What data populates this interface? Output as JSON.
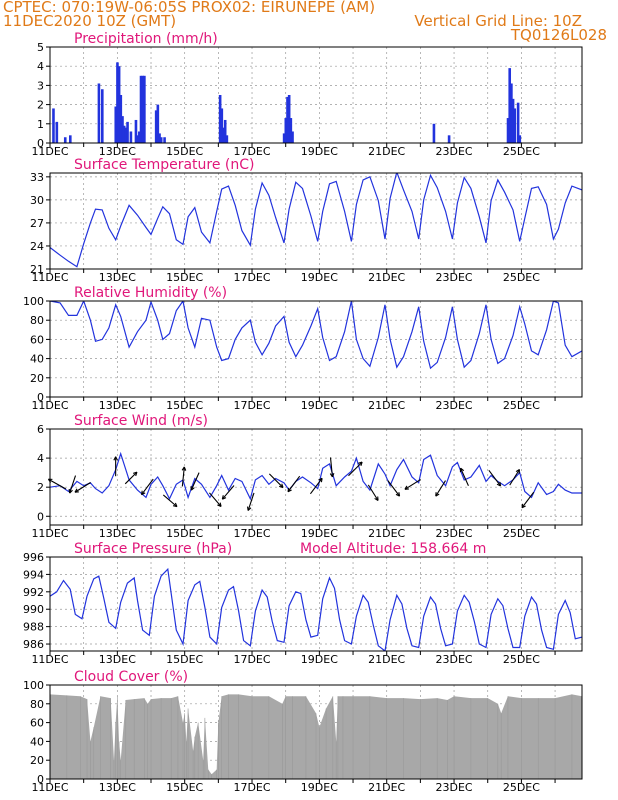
{
  "header": {
    "line1_left": "CPTEC:   070:19W-06:05S   PROX02: EIRUNEPE (AM)",
    "line2_left": "11DEC2020 10Z (GMT)",
    "line2_right": "Vertical Grid Line: 10Z",
    "line3_right": "TQ0126L028"
  },
  "colors": {
    "header": "#e07a18",
    "title": "#e0177a",
    "series": "#2233dd",
    "cloud": "#a8a8a8"
  },
  "x_axis": {
    "tick_labels": [
      "11DEC",
      "13DEC",
      "15DEC",
      "17DEC",
      "19DEC",
      "21DEC",
      "23DEC",
      "25DEC"
    ],
    "day_start": 11,
    "day_end": 26.8,
    "label_step_days": 2,
    "grid_days": [
      12,
      13,
      14,
      15,
      16,
      17,
      18,
      19,
      20,
      21,
      22,
      23,
      24,
      25,
      26
    ]
  },
  "chart_data": [
    {
      "id": "precip",
      "type": "bar",
      "title": "Precipitation (mm/h)",
      "ylim": [
        0,
        5
      ],
      "yticks": [
        "0",
        "1",
        "2",
        "3",
        "4",
        "5"
      ],
      "x_days": [
        11.1,
        11.2,
        11.45,
        11.6,
        12.45,
        12.55,
        12.95,
        13.0,
        13.05,
        13.1,
        13.15,
        13.2,
        13.25,
        13.3,
        13.4,
        13.55,
        13.6,
        13.65,
        13.7,
        13.75,
        13.8,
        14.15,
        14.2,
        14.25,
        14.3,
        14.4,
        16.05,
        16.1,
        16.15,
        16.2,
        16.25,
        17.95,
        18.0,
        18.05,
        18.1,
        18.15,
        18.2,
        22.4,
        22.85,
        24.6,
        24.65,
        24.7,
        24.75,
        24.8,
        24.9,
        24.95
      ],
      "values": [
        1.8,
        1.1,
        0.3,
        0.4,
        3.1,
        2.8,
        1.9,
        4.2,
        4.0,
        2.5,
        1.4,
        0.9,
        0.8,
        1.1,
        0.6,
        1.2,
        0.4,
        0.6,
        3.5,
        3.5,
        3.5,
        1.7,
        2.0,
        0.5,
        0.3,
        0.3,
        2.5,
        1.8,
        0.8,
        1.2,
        0.4,
        0.5,
        1.3,
        2.4,
        2.5,
        1.3,
        0.6,
        1.0,
        0.4,
        1.3,
        3.9,
        3.1,
        2.3,
        1.8,
        2.1,
        0.4
      ]
    },
    {
      "id": "temp",
      "type": "line",
      "title": "Surface Temperature (nC)",
      "ylim": [
        21,
        33.5
      ],
      "yticks": [
        "21",
        "24",
        "27",
        "30",
        "33"
      ],
      "ytick_values": [
        21,
        24,
        27,
        30,
        33
      ],
      "tmin": 24,
      "tmax": 30,
      "x_days": [
        11.0,
        11.3,
        11.55,
        11.8,
        12.0,
        12.2,
        12.35,
        12.55,
        12.75,
        12.95,
        13.1,
        13.35,
        13.6,
        13.85,
        14.0,
        14.2,
        14.35,
        14.55,
        14.75,
        14.95,
        15.1,
        15.3,
        15.5,
        15.75,
        15.95,
        16.1,
        16.3,
        16.5,
        16.7,
        16.95,
        17.1,
        17.3,
        17.5,
        17.7,
        17.95,
        18.1,
        18.3,
        18.5,
        18.75,
        18.95,
        19.1,
        19.3,
        19.5,
        19.75,
        19.95,
        20.1,
        20.3,
        20.5,
        20.75,
        20.95,
        21.1,
        21.3,
        21.5,
        21.75,
        21.95,
        22.1,
        22.3,
        22.5,
        22.75,
        22.95,
        23.1,
        23.3,
        23.5,
        23.75,
        23.95,
        24.1,
        24.3,
        24.5,
        24.75,
        24.95,
        25.1,
        25.3,
        25.5,
        25.75,
        25.95,
        26.1,
        26.3,
        26.5,
        26.8
      ],
      "values": [
        23.8,
        22.8,
        22.0,
        21.3,
        24.3,
        27.0,
        28.8,
        28.7,
        26.3,
        24.8,
        26.6,
        29.3,
        28.0,
        26.4,
        25.5,
        27.6,
        29.1,
        28.2,
        24.8,
        24.2,
        27.8,
        29.0,
        25.8,
        24.4,
        28.5,
        31.4,
        31.8,
        29.3,
        26.0,
        24.1,
        28.8,
        32.2,
        30.6,
        27.7,
        24.4,
        28.8,
        32.3,
        31.5,
        27.9,
        24.6,
        28.5,
        32.1,
        32.4,
        28.5,
        24.6,
        29.4,
        32.6,
        33.0,
        29.9,
        24.9,
        30.2,
        33.6,
        31.3,
        28.5,
        24.9,
        30.0,
        33.2,
        31.6,
        28.5,
        24.9,
        29.6,
        32.9,
        31.5,
        27.8,
        24.4,
        29.9,
        32.6,
        31.0,
        28.7,
        24.6,
        27.6,
        31.5,
        31.7,
        29.4,
        24.9,
        26.2,
        29.6,
        31.8,
        31.3
      ]
    },
    {
      "id": "rh",
      "type": "line",
      "title": "Relative Humidity (%)",
      "ylim": [
        0,
        100
      ],
      "yticks": [
        "0",
        "20",
        "40",
        "60",
        "80",
        "100"
      ],
      "ytick_values": [
        0,
        20,
        40,
        60,
        80,
        100
      ],
      "x_days": [
        11.0,
        11.3,
        11.55,
        11.8,
        12.0,
        12.2,
        12.35,
        12.55,
        12.75,
        12.95,
        13.1,
        13.35,
        13.6,
        13.85,
        14.0,
        14.2,
        14.35,
        14.55,
        14.75,
        14.95,
        15.1,
        15.3,
        15.5,
        15.75,
        15.95,
        16.1,
        16.3,
        16.5,
        16.7,
        16.95,
        17.1,
        17.3,
        17.5,
        17.7,
        17.95,
        18.1,
        18.3,
        18.5,
        18.75,
        18.95,
        19.1,
        19.3,
        19.5,
        19.75,
        19.95,
        20.1,
        20.3,
        20.5,
        20.75,
        20.95,
        21.1,
        21.3,
        21.5,
        21.75,
        21.95,
        22.1,
        22.3,
        22.5,
        22.75,
        22.95,
        23.1,
        23.3,
        23.5,
        23.75,
        23.95,
        24.1,
        24.3,
        24.5,
        24.75,
        24.95,
        25.1,
        25.3,
        25.5,
        25.75,
        25.95,
        26.1,
        26.3,
        26.5,
        26.8
      ],
      "values": [
        100,
        98,
        85,
        85,
        100,
        80,
        58,
        60,
        72,
        96,
        84,
        52,
        68,
        80,
        99,
        80,
        60,
        66,
        90,
        100,
        72,
        52,
        82,
        80,
        52,
        38,
        40,
        60,
        72,
        80,
        57,
        44,
        56,
        74,
        84,
        57,
        42,
        54,
        74,
        92,
        62,
        38,
        42,
        68,
        100,
        60,
        40,
        32,
        62,
        96,
        60,
        31,
        42,
        68,
        94,
        58,
        30,
        36,
        62,
        94,
        60,
        31,
        38,
        66,
        96,
        60,
        35,
        40,
        64,
        94,
        76,
        48,
        44,
        70,
        100,
        98,
        54,
        42,
        48
      ]
    },
    {
      "id": "wind",
      "type": "line",
      "title": "Surface Wind (m/s)",
      "ylim": [
        -0.6,
        6
      ],
      "yticks": [
        "0",
        "2",
        "4",
        "6"
      ],
      "ytick_values": [
        0,
        2,
        4,
        6
      ],
      "x_days": [
        11.0,
        11.3,
        11.55,
        11.8,
        12.0,
        12.2,
        12.35,
        12.55,
        12.75,
        12.95,
        13.1,
        13.35,
        13.6,
        13.85,
        14.0,
        14.2,
        14.35,
        14.55,
        14.75,
        14.95,
        15.1,
        15.3,
        15.5,
        15.75,
        15.95,
        16.1,
        16.3,
        16.5,
        16.7,
        16.95,
        17.1,
        17.3,
        17.5,
        17.7,
        17.95,
        18.1,
        18.3,
        18.5,
        18.75,
        18.95,
        19.1,
        19.3,
        19.5,
        19.75,
        19.95,
        20.1,
        20.3,
        20.5,
        20.75,
        20.95,
        21.1,
        21.3,
        21.5,
        21.75,
        21.95,
        22.1,
        22.3,
        22.5,
        22.75,
        22.95,
        23.1,
        23.3,
        23.5,
        23.75,
        23.95,
        24.1,
        24.3,
        24.5,
        24.75,
        24.95,
        25.1,
        25.3,
        25.5,
        25.75,
        25.95,
        26.1,
        26.3,
        26.5,
        26.8
      ],
      "values": [
        2.0,
        2.1,
        1.7,
        2.4,
        2.1,
        2.3,
        1.9,
        1.6,
        2.1,
        3.2,
        4.3,
        2.5,
        1.8,
        1.3,
        2.2,
        2.7,
        2.1,
        1.2,
        2.2,
        2.5,
        1.3,
        2.6,
        2.2,
        1.3,
        2.1,
        2.8,
        1.8,
        2.6,
        2.4,
        1.2,
        2.5,
        2.8,
        2.2,
        2.6,
        2.3,
        1.8,
        2.4,
        2.7,
        2.3,
        1.9,
        3.3,
        3.6,
        2.1,
        2.7,
        3.1,
        4.0,
        2.4,
        1.8,
        3.6,
        2.9,
        2.1,
        3.2,
        3.9,
        2.7,
        2.3,
        3.9,
        4.2,
        2.8,
        2.1,
        3.4,
        3.7,
        2.5,
        2.7,
        3.5,
        2.4,
        2.8,
        2.4,
        2.1,
        2.5,
        3.0,
        1.7,
        1.3,
        2.3,
        1.5,
        1.7,
        2.2,
        1.8,
        1.6,
        1.6
      ],
      "barbs": [
        {
          "day": 11.3,
          "u": -0.9,
          "v": 0.5
        },
        {
          "day": 11.7,
          "u": -0.3,
          "v": -0.9
        },
        {
          "day": 12.05,
          "u": -0.8,
          "v": -0.5
        },
        {
          "day": 12.95,
          "u": 0.0,
          "v": 1.0
        },
        {
          "day": 13.35,
          "u": 0.6,
          "v": 0.6
        },
        {
          "day": 13.95,
          "u": -0.6,
          "v": -0.8
        },
        {
          "day": 14.5,
          "u": 0.7,
          "v": -0.6
        },
        {
          "day": 14.95,
          "u": 0.1,
          "v": 1.0
        },
        {
          "day": 15.35,
          "u": -0.4,
          "v": -0.9
        },
        {
          "day": 15.85,
          "u": 0.6,
          "v": -0.7
        },
        {
          "day": 16.35,
          "u": -0.6,
          "v": -0.7
        },
        {
          "day": 17.0,
          "u": -0.3,
          "v": -0.9
        },
        {
          "day": 17.65,
          "u": 0.7,
          "v": -0.7
        },
        {
          "day": 18.3,
          "u": -0.6,
          "v": -0.8
        },
        {
          "day": 18.85,
          "u": 0.6,
          "v": 0.8
        },
        {
          "day": 19.35,
          "u": 0.1,
          "v": -1.0
        },
        {
          "day": 20.0,
          "u": 0.7,
          "v": 0.7
        },
        {
          "day": 20.55,
          "u": 0.5,
          "v": -0.8
        },
        {
          "day": 21.15,
          "u": 0.6,
          "v": -0.8
        },
        {
          "day": 21.85,
          "u": -0.8,
          "v": -0.5
        },
        {
          "day": 22.65,
          "u": -0.5,
          "v": -0.8
        },
        {
          "day": 23.35,
          "u": -0.4,
          "v": 0.9
        },
        {
          "day": 24.15,
          "u": 0.6,
          "v": -0.8
        },
        {
          "day": 24.75,
          "u": 0.5,
          "v": 0.8
        },
        {
          "day": 25.25,
          "u": -0.6,
          "v": -0.8
        }
      ]
    },
    {
      "id": "pres",
      "type": "line",
      "title": "Surface Pressure (hPa)",
      "annotation": "Model Altitude: 158.664 m",
      "ylim": [
        985.2,
        996
      ],
      "yticks": [
        "986",
        "988",
        "990",
        "992",
        "994",
        "996"
      ],
      "ytick_values": [
        986,
        988,
        990,
        992,
        994,
        996
      ],
      "x_days": [
        11.0,
        11.2,
        11.4,
        11.6,
        11.75,
        11.95,
        12.1,
        12.3,
        12.45,
        12.6,
        12.75,
        12.95,
        13.1,
        13.3,
        13.5,
        13.6,
        13.75,
        13.95,
        14.1,
        14.3,
        14.5,
        14.6,
        14.75,
        14.95,
        15.1,
        15.3,
        15.45,
        15.6,
        15.75,
        15.95,
        16.1,
        16.3,
        16.45,
        16.6,
        16.75,
        16.95,
        17.1,
        17.3,
        17.45,
        17.6,
        17.75,
        17.95,
        18.1,
        18.3,
        18.45,
        18.6,
        18.75,
        18.95,
        19.1,
        19.3,
        19.45,
        19.6,
        19.75,
        19.95,
        20.1,
        20.3,
        20.45,
        20.6,
        20.75,
        20.95,
        21.1,
        21.3,
        21.45,
        21.6,
        21.75,
        21.95,
        22.1,
        22.3,
        22.45,
        22.6,
        22.75,
        22.95,
        23.1,
        23.3,
        23.45,
        23.6,
        23.75,
        23.95,
        24.1,
        24.3,
        24.45,
        24.6,
        24.75,
        24.95,
        25.1,
        25.3,
        25.45,
        25.6,
        25.75,
        25.95,
        26.1,
        26.3,
        26.45,
        26.6,
        26.8
      ],
      "values": [
        991.5,
        992.0,
        993.3,
        992.3,
        989.4,
        988.9,
        991.5,
        993.5,
        993.8,
        991.2,
        988.5,
        987.8,
        990.8,
        993.0,
        993.6,
        991.0,
        987.6,
        987.0,
        991.5,
        993.8,
        994.6,
        991.8,
        987.6,
        986.0,
        991.0,
        992.8,
        993.2,
        990.2,
        986.8,
        986.0,
        990.2,
        992.2,
        992.6,
        989.8,
        986.4,
        985.8,
        989.8,
        992.2,
        991.4,
        988.6,
        986.4,
        986.2,
        990.4,
        992.0,
        991.8,
        988.8,
        986.8,
        987.0,
        991.2,
        993.6,
        992.4,
        988.8,
        986.4,
        986.0,
        989.2,
        991.6,
        990.8,
        988.2,
        985.8,
        985.2,
        988.8,
        991.6,
        990.6,
        987.8,
        985.8,
        985.6,
        989.2,
        991.4,
        990.6,
        987.8,
        985.8,
        986.0,
        989.8,
        991.6,
        990.8,
        988.6,
        986.0,
        985.6,
        989.4,
        991.2,
        990.4,
        987.8,
        985.6,
        985.6,
        989.2,
        991.4,
        990.6,
        987.6,
        985.6,
        985.4,
        989.4,
        991.0,
        989.6,
        986.6,
        986.8
      ]
    },
    {
      "id": "cloud",
      "type": "area",
      "title": "Cloud Cover (%)",
      "ylim": [
        0,
        100
      ],
      "yticks": [
        "0",
        "20",
        "40",
        "60",
        "80",
        "100"
      ],
      "ytick_values": [
        0,
        20,
        40,
        60,
        80,
        100
      ],
      "x_days": [
        11.0,
        11.5,
        11.9,
        12.1,
        12.2,
        12.3,
        12.5,
        12.8,
        12.9,
        12.95,
        13.0,
        13.05,
        13.1,
        13.25,
        13.5,
        13.8,
        13.9,
        14.0,
        14.3,
        14.6,
        14.8,
        14.95,
        15.0,
        15.05,
        15.1,
        15.25,
        15.3,
        15.4,
        15.55,
        15.6,
        15.7,
        15.8,
        15.95,
        16.0,
        16.1,
        16.3,
        16.6,
        17.0,
        17.5,
        17.9,
        18.0,
        18.2,
        18.6,
        18.9,
        19.0,
        19.2,
        19.4,
        19.5,
        19.55,
        19.7,
        20.0,
        20.5,
        21.0,
        21.5,
        22.0,
        22.5,
        22.8,
        23.0,
        23.5,
        24.0,
        24.3,
        24.4,
        24.6,
        25.0,
        25.5,
        26.0,
        26.5,
        26.8
      ],
      "values": [
        90,
        89,
        88,
        85,
        40,
        55,
        88,
        86,
        20,
        60,
        88,
        40,
        20,
        84,
        85,
        86,
        80,
        85,
        86,
        86,
        88,
        60,
        70,
        40,
        75,
        30,
        45,
        60,
        20,
        65,
        10,
        5,
        10,
        60,
        88,
        90,
        90,
        88,
        88,
        80,
        88,
        88,
        88,
        70,
        55,
        75,
        88,
        40,
        88,
        88,
        88,
        88,
        86,
        86,
        85,
        86,
        84,
        88,
        86,
        86,
        80,
        70,
        88,
        86,
        86,
        86,
        90,
        88
      ]
    }
  ]
}
